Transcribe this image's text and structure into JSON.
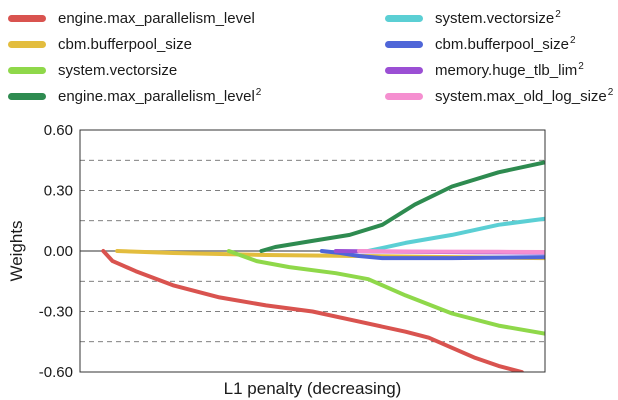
{
  "chart_data": {
    "type": "line",
    "title": "",
    "xlabel": "L1 penalty (decreasing)",
    "ylabel": "Weights",
    "xlim": [
      0,
      100
    ],
    "ylim": [
      -0.6,
      0.6
    ],
    "yticks": [
      "0.60",
      "0.30",
      "0.00",
      "-0.30",
      "-0.60"
    ],
    "grid": "dashed horizontal",
    "legend_position": "top",
    "series": [
      {
        "name": "engine.max_parallelism_level",
        "sup": "",
        "color": "#d9534f",
        "x": [
          5,
          7,
          9,
          12,
          20,
          30,
          40,
          50,
          60,
          70,
          75,
          80,
          85,
          90,
          95
        ],
        "y": [
          0.0,
          -0.05,
          -0.07,
          -0.1,
          -0.17,
          -0.23,
          -0.27,
          -0.3,
          -0.35,
          -0.4,
          -0.43,
          -0.48,
          -0.53,
          -0.57,
          -0.6
        ]
      },
      {
        "name": "cbm.bufferpool_size",
        "sup": "",
        "color": "#e3bd3e",
        "x": [
          8,
          20,
          40,
          60,
          80,
          100
        ],
        "y": [
          0.0,
          -0.01,
          -0.02,
          -0.025,
          -0.03,
          -0.035
        ]
      },
      {
        "name": "system.vectorsize",
        "sup": "",
        "color": "#8fd84a",
        "x": [
          32,
          38,
          45,
          55,
          62,
          70,
          80,
          90,
          100
        ],
        "y": [
          0.0,
          -0.05,
          -0.08,
          -0.11,
          -0.14,
          -0.22,
          -0.31,
          -0.37,
          -0.41
        ]
      },
      {
        "name": "engine.max_parallelism_level",
        "sup": "2",
        "color": "#2e8b50",
        "x": [
          39,
          42,
          50,
          58,
          65,
          72,
          80,
          90,
          100
        ],
        "y": [
          0.0,
          0.02,
          0.05,
          0.08,
          0.13,
          0.23,
          0.32,
          0.39,
          0.44
        ]
      },
      {
        "name": "system.vectorsize",
        "sup": "2",
        "color": "#5bcfd4",
        "x": [
          62,
          70,
          80,
          90,
          100
        ],
        "y": [
          0.0,
          0.04,
          0.08,
          0.13,
          0.16
        ]
      },
      {
        "name": "cbm.bufferpool_size",
        "sup": "2",
        "color": "#4f66d8",
        "x": [
          52,
          56,
          60,
          65,
          70,
          80,
          100
        ],
        "y": [
          0.0,
          -0.01,
          -0.025,
          -0.035,
          -0.035,
          -0.035,
          -0.03
        ]
      },
      {
        "name": "memory.huge_tlb_lim",
        "sup": "2",
        "color": "#9b4fd4",
        "x": [
          55,
          70,
          85,
          100
        ],
        "y": [
          0.0,
          -0.004,
          -0.006,
          -0.008
        ]
      },
      {
        "name": "system.max_old_log_size",
        "sup": "2",
        "color": "#f58fd0",
        "x": [
          60,
          75,
          90,
          100
        ],
        "y": [
          0.0,
          -0.003,
          -0.004,
          -0.005
        ]
      }
    ]
  }
}
